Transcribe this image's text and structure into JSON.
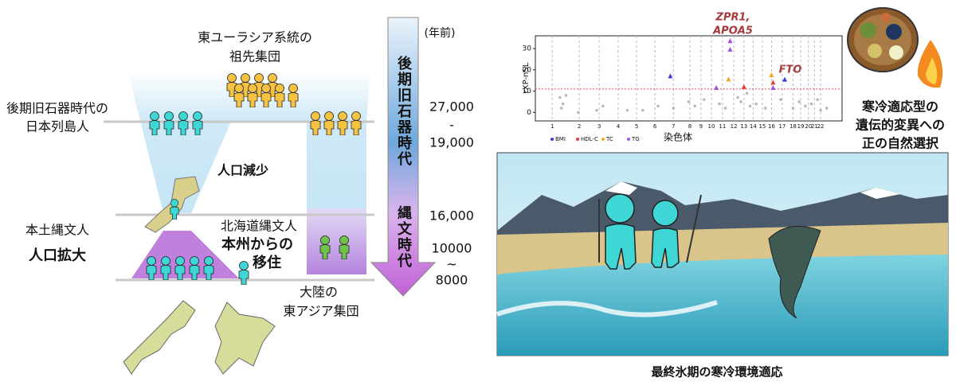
{
  "left": {
    "ancestor_label": [
      "東ユーラシア系統の",
      "祖先集団"
    ],
    "year_unit": "(年前)",
    "paleolithic_people": [
      "後期旧石器時代の",
      "日本列島人"
    ],
    "period_1_years": [
      "27,000",
      "-",
      "19,000"
    ],
    "decrease": "人口減少",
    "boundary_year": "16,000",
    "honshu_jomon": "本土縄文人",
    "increase": "人口拡大",
    "hokkaido_jomon": "北海道縄文人",
    "migration": [
      "本州からの",
      "移住"
    ],
    "period_2_years": [
      "10000",
      "~",
      "8000"
    ],
    "continental": [
      "大陸の",
      "東アジア集団"
    ],
    "era_paleolithic": "後期旧石器時代",
    "era_jomon": "縄文時代"
  },
  "plot": {
    "y_label": "rXP-nSL",
    "x_label": "染色体",
    "ylim": [
      -4,
      36
    ],
    "yticks": [
      0,
      10,
      20,
      30
    ],
    "xlim": [
      0,
      100
    ],
    "xticks": [
      {
        "value": 5.5,
        "label": "1"
      },
      {
        "value": 14.3,
        "label": "2"
      },
      {
        "value": 20.8,
        "label": "3"
      },
      {
        "value": 27,
        "label": "4"
      },
      {
        "value": 33,
        "label": "5"
      },
      {
        "value": 39,
        "label": "6"
      },
      {
        "value": 45,
        "label": "7"
      },
      {
        "value": 50.4,
        "label": "8"
      },
      {
        "value": 54,
        "label": "9"
      },
      {
        "value": 57.4,
        "label": "10"
      },
      {
        "value": 61,
        "label": "11"
      },
      {
        "value": 64.7,
        "label": "12"
      },
      {
        "value": 68,
        "label": "13"
      },
      {
        "value": 71,
        "label": "14"
      },
      {
        "value": 74,
        "label": "15"
      },
      {
        "value": 77,
        "label": "16"
      },
      {
        "value": 80.5,
        "label": "17"
      },
      {
        "value": 84,
        "label": "18"
      },
      {
        "value": 86.5,
        "label": "19"
      },
      {
        "value": 89,
        "label": "20"
      },
      {
        "value": 91,
        "label": "21"
      },
      {
        "value": 93,
        "label": "22"
      }
    ],
    "threshold": 11,
    "threshold_color": "#e8474c",
    "series": [
      {
        "name": "BMI",
        "color": "#3a3ad8",
        "x": [
          44,
          81.3
        ],
        "y": [
          17,
          15.4
        ]
      },
      {
        "name": "HDL-C",
        "color": "#e0402e",
        "x": [
          68,
          77.5
        ],
        "y": [
          12,
          14
        ]
      },
      {
        "name": "TC",
        "color": "#f2a81d",
        "x": [
          63,
          77
        ],
        "y": [
          15.5,
          17.5
        ]
      },
      {
        "name": "TG",
        "color": "#a64ee6",
        "x": [
          59,
          63.5,
          63.5,
          77.5
        ],
        "y": [
          11.5,
          33.5,
          29.5,
          11.5
        ]
      }
    ],
    "other_points": {
      "color": "#b8b8b8",
      "x": [
        8,
        9,
        10,
        8.5,
        20,
        22,
        35,
        45,
        50,
        52,
        55,
        60,
        62,
        66,
        67,
        69,
        70,
        72,
        80,
        84,
        86,
        88,
        90,
        92,
        93,
        95,
        14,
        30,
        40,
        75
      ],
      "y": [
        7,
        4,
        8,
        2,
        1,
        3,
        1,
        2,
        5,
        3,
        6,
        4,
        2,
        7,
        5,
        9,
        3,
        4,
        6,
        2,
        5,
        3,
        4,
        6,
        1,
        2,
        0,
        1,
        3,
        2
      ]
    },
    "gene_labels": [
      [
        "ZPR1,",
        "APOA5"
      ],
      [
        "FTO"
      ]
    ]
  },
  "selection": [
    "寒冷適応型の",
    "遺伝的変異への",
    "正の自然選択"
  ],
  "caption": "最終氷期の寒冷環境適応"
}
